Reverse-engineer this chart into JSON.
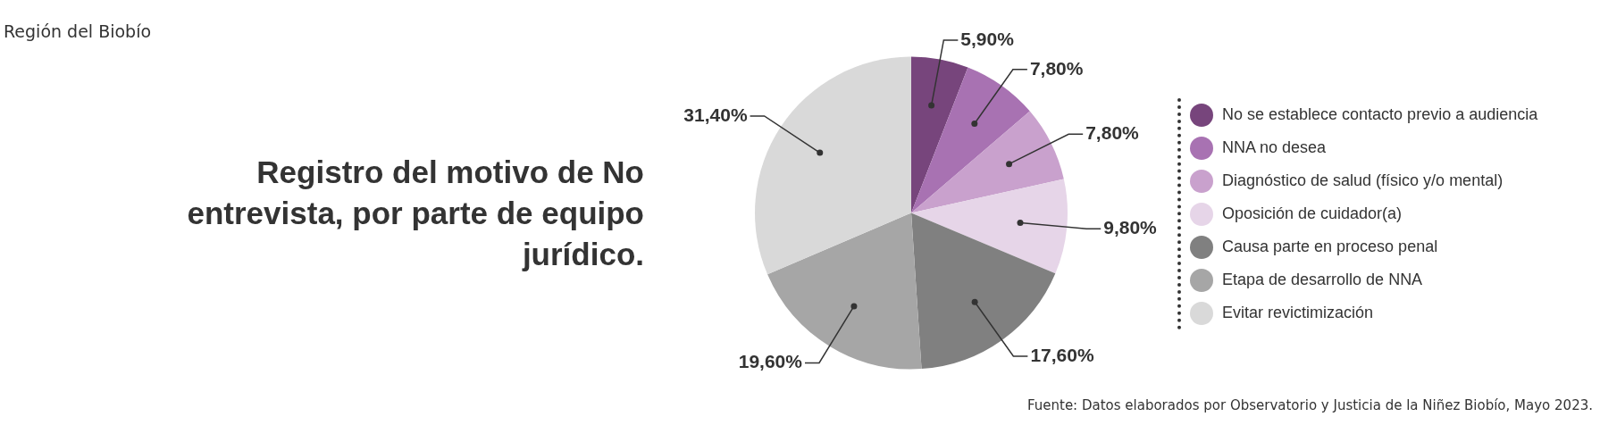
{
  "chart_data": {
    "type": "pie",
    "title": "Registro del motivo de No entrevista, por parte de equipo jurídico.",
    "subtitle": "Región del Biobío",
    "categories": [
      "No se establece contacto previo a audiencia",
      "NNA no desea",
      "Diagnóstico de salud (físico y/o mental)",
      "Oposición de cuidador(a)",
      "Causa parte en proceso penal",
      "Etapa de desarrollo de NNA",
      "Evitar revictimización"
    ],
    "values": [
      5.9,
      7.8,
      7.8,
      9.8,
      17.6,
      19.6,
      31.4
    ],
    "value_labels": [
      "5,90%",
      "7,80%",
      "7,80%",
      "9,80%",
      "17,60%",
      "19,60%",
      "31,40%"
    ],
    "colors": [
      "#77457c",
      "#a872b2",
      "#c9a1cd",
      "#e6d5e8",
      "#808080",
      "#a6a6a6",
      "#d9d9d9"
    ],
    "legend": "right",
    "annotations": [
      "Fuente: Datos elaborados por Observatorio y Justicia de la Niñez Biobío, Mayo 2023."
    ]
  }
}
